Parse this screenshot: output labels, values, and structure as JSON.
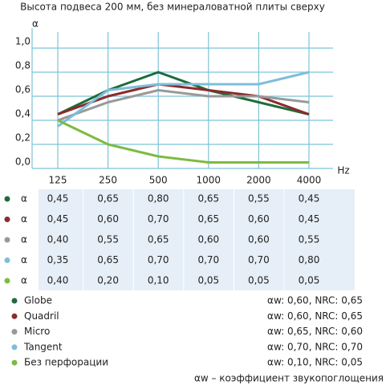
{
  "chart_data": {
    "type": "line",
    "title": "Высота подвеса 200 мм, без минераловатной плиты сверху",
    "y_label": "α",
    "x_label": "Hz",
    "categories": [
      "125",
      "250",
      "500",
      "1000",
      "2000",
      "4000"
    ],
    "ylim": [
      0,
      1
    ],
    "grid": true,
    "grid_color": "#7cc3d6",
    "yticks": [
      {
        "value": 0,
        "label": "0,0"
      },
      {
        "value": 0.2,
        "label": "0,2"
      },
      {
        "value": 0.4,
        "label": "0,4"
      },
      {
        "value": 0.6,
        "label": "0,6"
      },
      {
        "value": 0.8,
        "label": "0,8"
      },
      {
        "value": 1,
        "label": "1,0"
      }
    ],
    "series": [
      {
        "name": "Globe",
        "color": "#1f6b3b",
        "values": [
          0.45,
          0.65,
          0.8,
          0.65,
          0.55,
          0.45
        ],
        "value_labels": [
          "0,45",
          "0,65",
          "0,80",
          "0,65",
          "0,55",
          "0,45"
        ],
        "rating": "αw: 0,60, NRC: 0,65"
      },
      {
        "name": "Quadril",
        "color": "#8b2b2b",
        "values": [
          0.45,
          0.6,
          0.7,
          0.65,
          0.6,
          0.45
        ],
        "value_labels": [
          "0,45",
          "0,60",
          "0,70",
          "0,65",
          "0,60",
          "0,45"
        ],
        "rating": "αw: 0,60, NRC: 0,65"
      },
      {
        "name": "Micro",
        "color": "#999999",
        "values": [
          0.4,
          0.55,
          0.65,
          0.6,
          0.6,
          0.55
        ],
        "value_labels": [
          "0,40",
          "0,55",
          "0,65",
          "0,60",
          "0,60",
          "0,55"
        ],
        "rating": "αw: 0,65, NRC: 0,60"
      },
      {
        "name": "Tangent",
        "color": "#7fbddb",
        "values": [
          0.35,
          0.65,
          0.7,
          0.7,
          0.7,
          0.8
        ],
        "value_labels": [
          "0,35",
          "0,65",
          "0,70",
          "0,70",
          "0,70",
          "0,80"
        ],
        "rating": "αw: 0,70, NRC: 0,70"
      },
      {
        "name": "Без перфорации",
        "color": "#7dbb42",
        "values": [
          0.4,
          0.2,
          0.1,
          0.05,
          0.05,
          0.05
        ],
        "value_labels": [
          "0,40",
          "0,20",
          "0,10",
          "0,05",
          "0,05",
          "0,05"
        ],
        "rating": "αw: 0,10, NRC: 0,05"
      }
    ],
    "footnote": "αw – коэффициент звукопоглощения"
  }
}
